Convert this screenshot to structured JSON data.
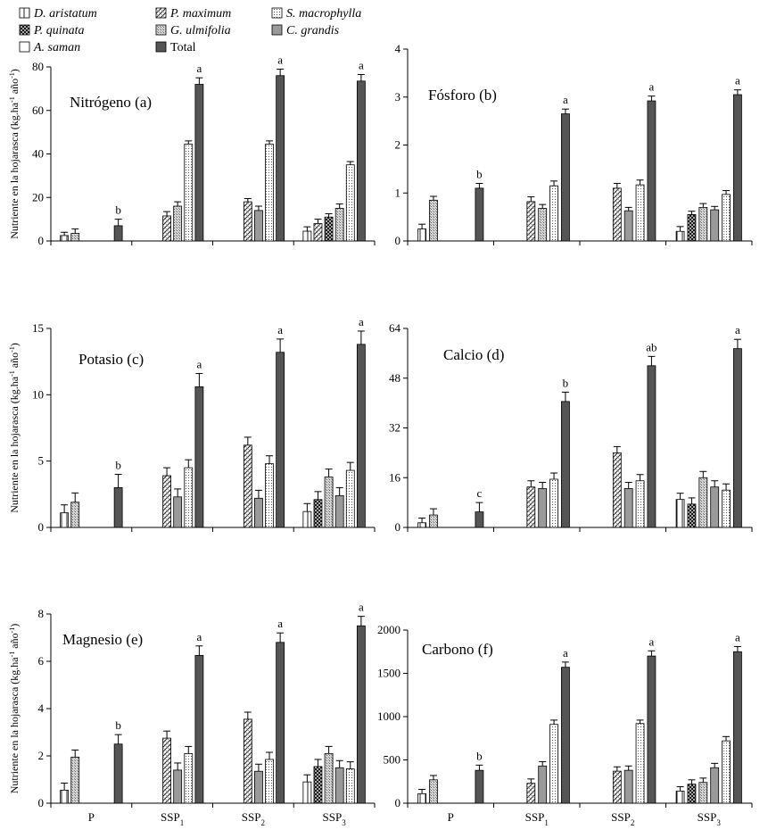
{
  "legend": [
    {
      "key": "d_aristatum",
      "label": "D. aristatum",
      "italic": true
    },
    {
      "key": "p_maximum",
      "label": "P. maximum",
      "italic": true
    },
    {
      "key": "s_macrophylla",
      "label": "S. macrophylla",
      "italic": true
    },
    {
      "key": "p_quinata",
      "label": "P. quinata",
      "italic": true
    },
    {
      "key": "g_ulmifolia",
      "label": "G. ulmifolia",
      "italic": true
    },
    {
      "key": "c_grandis",
      "label": "C. grandis",
      "italic": true
    },
    {
      "key": "a_saman",
      "label": "A. saman",
      "italic": true
    },
    {
      "key": "total",
      "label": "Total",
      "italic": false
    }
  ],
  "y_axis_label_prefix": "Nutriente en la hojarasca (kg.ha",
  "y_axis_label_mid": " año",
  "y_axis_label_suffix": ")",
  "y_axis_label_sup": "-1",
  "groups": [
    {
      "base": "P",
      "sub": ""
    },
    {
      "base": "SSP",
      "sub": "1"
    },
    {
      "base": "SSP",
      "sub": "2"
    },
    {
      "base": "SSP",
      "sub": "3"
    }
  ],
  "chart_data": [
    {
      "type": "bar",
      "title": "Nitrógeno (a)",
      "categories": [
        "P",
        "SSP1",
        "SSP2",
        "SSP3"
      ],
      "ylim": [
        0,
        80
      ],
      "yticks": [
        0,
        20,
        40,
        60,
        80
      ],
      "bars": [
        [
          {
            "series": "d_aristatum",
            "value": 2.5,
            "err": 1.5
          },
          {
            "series": "g_ulmifolia",
            "value": 3.5,
            "err": 2
          },
          {
            "series": "total",
            "value": 7,
            "err": 3,
            "label": "b"
          }
        ],
        [
          {
            "series": "p_maximum",
            "value": 11.5,
            "err": 2
          },
          {
            "series": "g_ulmifolia",
            "value": 16,
            "err": 2
          },
          {
            "series": "s_macrophylla",
            "value": 44.5,
            "err": 1.5
          },
          {
            "series": "total",
            "value": 72,
            "err": 3,
            "label": "a"
          }
        ],
        [
          {
            "series": "p_maximum",
            "value": 18,
            "err": 1.5
          },
          {
            "series": "c_grandis",
            "value": 14,
            "err": 2
          },
          {
            "series": "s_macrophylla",
            "value": 44.5,
            "err": 1.5
          },
          {
            "series": "total",
            "value": 76,
            "err": 3,
            "label": "a"
          }
        ],
        [
          {
            "series": "d_aristatum",
            "value": 4.5,
            "err": 2
          },
          {
            "series": "p_maximum",
            "value": 8,
            "err": 2
          },
          {
            "series": "p_quinata",
            "value": 11,
            "err": 1.5
          },
          {
            "series": "g_ulmifolia",
            "value": 15,
            "err": 2
          },
          {
            "series": "s_macrophylla",
            "value": 35,
            "err": 1.5
          },
          {
            "series": "total",
            "value": 73.5,
            "err": 3,
            "label": "a"
          }
        ]
      ]
    },
    {
      "type": "bar",
      "title": "Fósforo (b)",
      "categories": [
        "P",
        "SSP1",
        "SSP2",
        "SSP3"
      ],
      "ylim": [
        0,
        4
      ],
      "yticks": [
        0,
        1,
        2,
        3,
        4
      ],
      "bars": [
        [
          {
            "series": "d_aristatum",
            "value": 0.25,
            "err": 0.1
          },
          {
            "series": "g_ulmifolia",
            "value": 0.85,
            "err": 0.08
          },
          {
            "series": "total",
            "value": 1.1,
            "err": 0.1,
            "label": "b"
          }
        ],
        [
          {
            "series": "p_maximum",
            "value": 0.82,
            "err": 0.1
          },
          {
            "series": "g_ulmifolia",
            "value": 0.68,
            "err": 0.08
          },
          {
            "series": "s_macrophylla",
            "value": 1.15,
            "err": 0.1
          },
          {
            "series": "total",
            "value": 2.65,
            "err": 0.1,
            "label": "a"
          }
        ],
        [
          {
            "series": "p_maximum",
            "value": 1.1,
            "err": 0.1
          },
          {
            "series": "c_grandis",
            "value": 0.63,
            "err": 0.07
          },
          {
            "series": "s_macrophylla",
            "value": 1.17,
            "err": 0.1
          },
          {
            "series": "total",
            "value": 2.92,
            "err": 0.1,
            "label": "a"
          }
        ],
        [
          {
            "series": "d_aristatum",
            "value": 0.2,
            "err": 0.1
          },
          {
            "series": "p_quinata",
            "value": 0.55,
            "err": 0.07
          },
          {
            "series": "g_ulmifolia",
            "value": 0.7,
            "err": 0.08
          },
          {
            "series": "c_grandis",
            "value": 0.65,
            "err": 0.07
          },
          {
            "series": "s_macrophylla",
            "value": 0.97,
            "err": 0.08
          },
          {
            "series": "total",
            "value": 3.05,
            "err": 0.1,
            "label": "a"
          }
        ]
      ]
    },
    {
      "type": "bar",
      "title": "Potasio (c)",
      "categories": [
        "P",
        "SSP1",
        "SSP2",
        "SSP3"
      ],
      "ylim": [
        0,
        15
      ],
      "yticks": [
        0,
        5,
        10,
        15
      ],
      "bars": [
        [
          {
            "series": "d_aristatum",
            "value": 1.1,
            "err": 0.6
          },
          {
            "series": "g_ulmifolia",
            "value": 1.9,
            "err": 0.7
          },
          {
            "series": "total",
            "value": 3,
            "err": 1,
            "label": "b"
          }
        ],
        [
          {
            "series": "p_maximum",
            "value": 3.9,
            "err": 0.6
          },
          {
            "series": "c_grandis",
            "value": 2.3,
            "err": 0.6
          },
          {
            "series": "s_macrophylla",
            "value": 4.5,
            "err": 0.6
          },
          {
            "series": "total",
            "value": 10.6,
            "err": 1,
            "label": "a"
          }
        ],
        [
          {
            "series": "p_maximum",
            "value": 6.2,
            "err": 0.6
          },
          {
            "series": "c_grandis",
            "value": 2.2,
            "err": 0.6
          },
          {
            "series": "s_macrophylla",
            "value": 4.8,
            "err": 0.6
          },
          {
            "series": "total",
            "value": 13.2,
            "err": 1,
            "label": "a"
          }
        ],
        [
          {
            "series": "d_aristatum",
            "value": 1.2,
            "err": 0.6
          },
          {
            "series": "p_quinata",
            "value": 2.1,
            "err": 0.6
          },
          {
            "series": "g_ulmifolia",
            "value": 3.8,
            "err": 0.6
          },
          {
            "series": "c_grandis",
            "value": 2.4,
            "err": 0.6
          },
          {
            "series": "s_macrophylla",
            "value": 4.3,
            "err": 0.6
          },
          {
            "series": "total",
            "value": 13.8,
            "err": 1,
            "label": "a"
          }
        ]
      ]
    },
    {
      "type": "bar",
      "title": "Calcio (d)",
      "categories": [
        "P",
        "SSP1",
        "SSP2",
        "SSP3"
      ],
      "ylim": [
        0,
        64
      ],
      "yticks": [
        0,
        16,
        32,
        48,
        64
      ],
      "bars": [
        [
          {
            "series": "d_aristatum",
            "value": 1.5,
            "err": 1.5
          },
          {
            "series": "g_ulmifolia",
            "value": 4,
            "err": 2
          },
          {
            "series": "total",
            "value": 5,
            "err": 3,
            "label": "c"
          }
        ],
        [
          {
            "series": "p_maximum",
            "value": 13,
            "err": 2
          },
          {
            "series": "c_grandis",
            "value": 12.5,
            "err": 2
          },
          {
            "series": "s_macrophylla",
            "value": 15.5,
            "err": 2
          },
          {
            "series": "total",
            "value": 40.5,
            "err": 3,
            "label": "b"
          }
        ],
        [
          {
            "series": "p_maximum",
            "value": 24,
            "err": 2
          },
          {
            "series": "c_grandis",
            "value": 12.5,
            "err": 2
          },
          {
            "series": "s_macrophylla",
            "value": 15,
            "err": 2
          },
          {
            "series": "total",
            "value": 52,
            "err": 3,
            "label": "ab"
          }
        ],
        [
          {
            "series": "d_aristatum",
            "value": 9,
            "err": 2
          },
          {
            "series": "p_quinata",
            "value": 7.5,
            "err": 2
          },
          {
            "series": "g_ulmifolia",
            "value": 16,
            "err": 2
          },
          {
            "series": "c_grandis",
            "value": 13,
            "err": 2
          },
          {
            "series": "s_macrophylla",
            "value": 12,
            "err": 2
          },
          {
            "series": "total",
            "value": 57.5,
            "err": 3,
            "label": "a"
          }
        ]
      ]
    },
    {
      "type": "bar",
      "title": "Magnesio (e)",
      "categories": [
        "P",
        "SSP1",
        "SSP2",
        "SSP3"
      ],
      "ylim": [
        0,
        8
      ],
      "yticks": [
        0,
        2,
        4,
        6,
        8
      ],
      "bars": [
        [
          {
            "series": "d_aristatum",
            "value": 0.55,
            "err": 0.3
          },
          {
            "series": "g_ulmifolia",
            "value": 1.95,
            "err": 0.3
          },
          {
            "series": "total",
            "value": 2.5,
            "err": 0.4,
            "label": "b"
          }
        ],
        [
          {
            "series": "p_maximum",
            "value": 2.75,
            "err": 0.3
          },
          {
            "series": "c_grandis",
            "value": 1.4,
            "err": 0.3
          },
          {
            "series": "s_macrophylla",
            "value": 2.1,
            "err": 0.3
          },
          {
            "series": "total",
            "value": 6.25,
            "err": 0.4,
            "label": "a"
          }
        ],
        [
          {
            "series": "p_maximum",
            "value": 3.55,
            "err": 0.3
          },
          {
            "series": "c_grandis",
            "value": 1.35,
            "err": 0.3
          },
          {
            "series": "s_macrophylla",
            "value": 1.85,
            "err": 0.3
          },
          {
            "series": "total",
            "value": 6.8,
            "err": 0.4,
            "label": "a"
          }
        ],
        [
          {
            "series": "d_aristatum",
            "value": 0.9,
            "err": 0.3
          },
          {
            "series": "p_quinata",
            "value": 1.55,
            "err": 0.3
          },
          {
            "series": "g_ulmifolia",
            "value": 2.1,
            "err": 0.3
          },
          {
            "series": "c_grandis",
            "value": 1.5,
            "err": 0.3
          },
          {
            "series": "s_macrophylla",
            "value": 1.45,
            "err": 0.3
          },
          {
            "series": "total",
            "value": 7.5,
            "err": 0.4,
            "label": "a"
          }
        ]
      ]
    },
    {
      "type": "bar",
      "title": "Carbono (f)",
      "categories": [
        "P",
        "SSP1",
        "SSP2",
        "SSP3"
      ],
      "ylim": [
        0,
        2000
      ],
      "yticks": [
        0,
        500,
        1000,
        1500,
        2000
      ],
      "bars": [
        [
          {
            "series": "d_aristatum",
            "value": 110,
            "err": 50
          },
          {
            "series": "g_ulmifolia",
            "value": 270,
            "err": 50
          },
          {
            "series": "total",
            "value": 380,
            "err": 60,
            "label": "b"
          }
        ],
        [
          {
            "series": "p_maximum",
            "value": 230,
            "err": 50
          },
          {
            "series": "c_grandis",
            "value": 430,
            "err": 50
          },
          {
            "series": "s_macrophylla",
            "value": 910,
            "err": 50
          },
          {
            "series": "total",
            "value": 1570,
            "err": 60,
            "label": "a"
          }
        ],
        [
          {
            "series": "p_maximum",
            "value": 370,
            "err": 50
          },
          {
            "series": "c_grandis",
            "value": 380,
            "err": 50
          },
          {
            "series": "s_macrophylla",
            "value": 920,
            "err": 40
          },
          {
            "series": "total",
            "value": 1700,
            "err": 60,
            "label": "a"
          }
        ],
        [
          {
            "series": "d_aristatum",
            "value": 140,
            "err": 50
          },
          {
            "series": "p_quinata",
            "value": 220,
            "err": 50
          },
          {
            "series": "g_ulmifolia",
            "value": 240,
            "err": 50
          },
          {
            "series": "c_grandis",
            "value": 410,
            "err": 50
          },
          {
            "series": "s_macrophylla",
            "value": 720,
            "err": 50
          },
          {
            "series": "total",
            "value": 1750,
            "err": 60,
            "label": "a"
          }
        ]
      ]
    }
  ]
}
